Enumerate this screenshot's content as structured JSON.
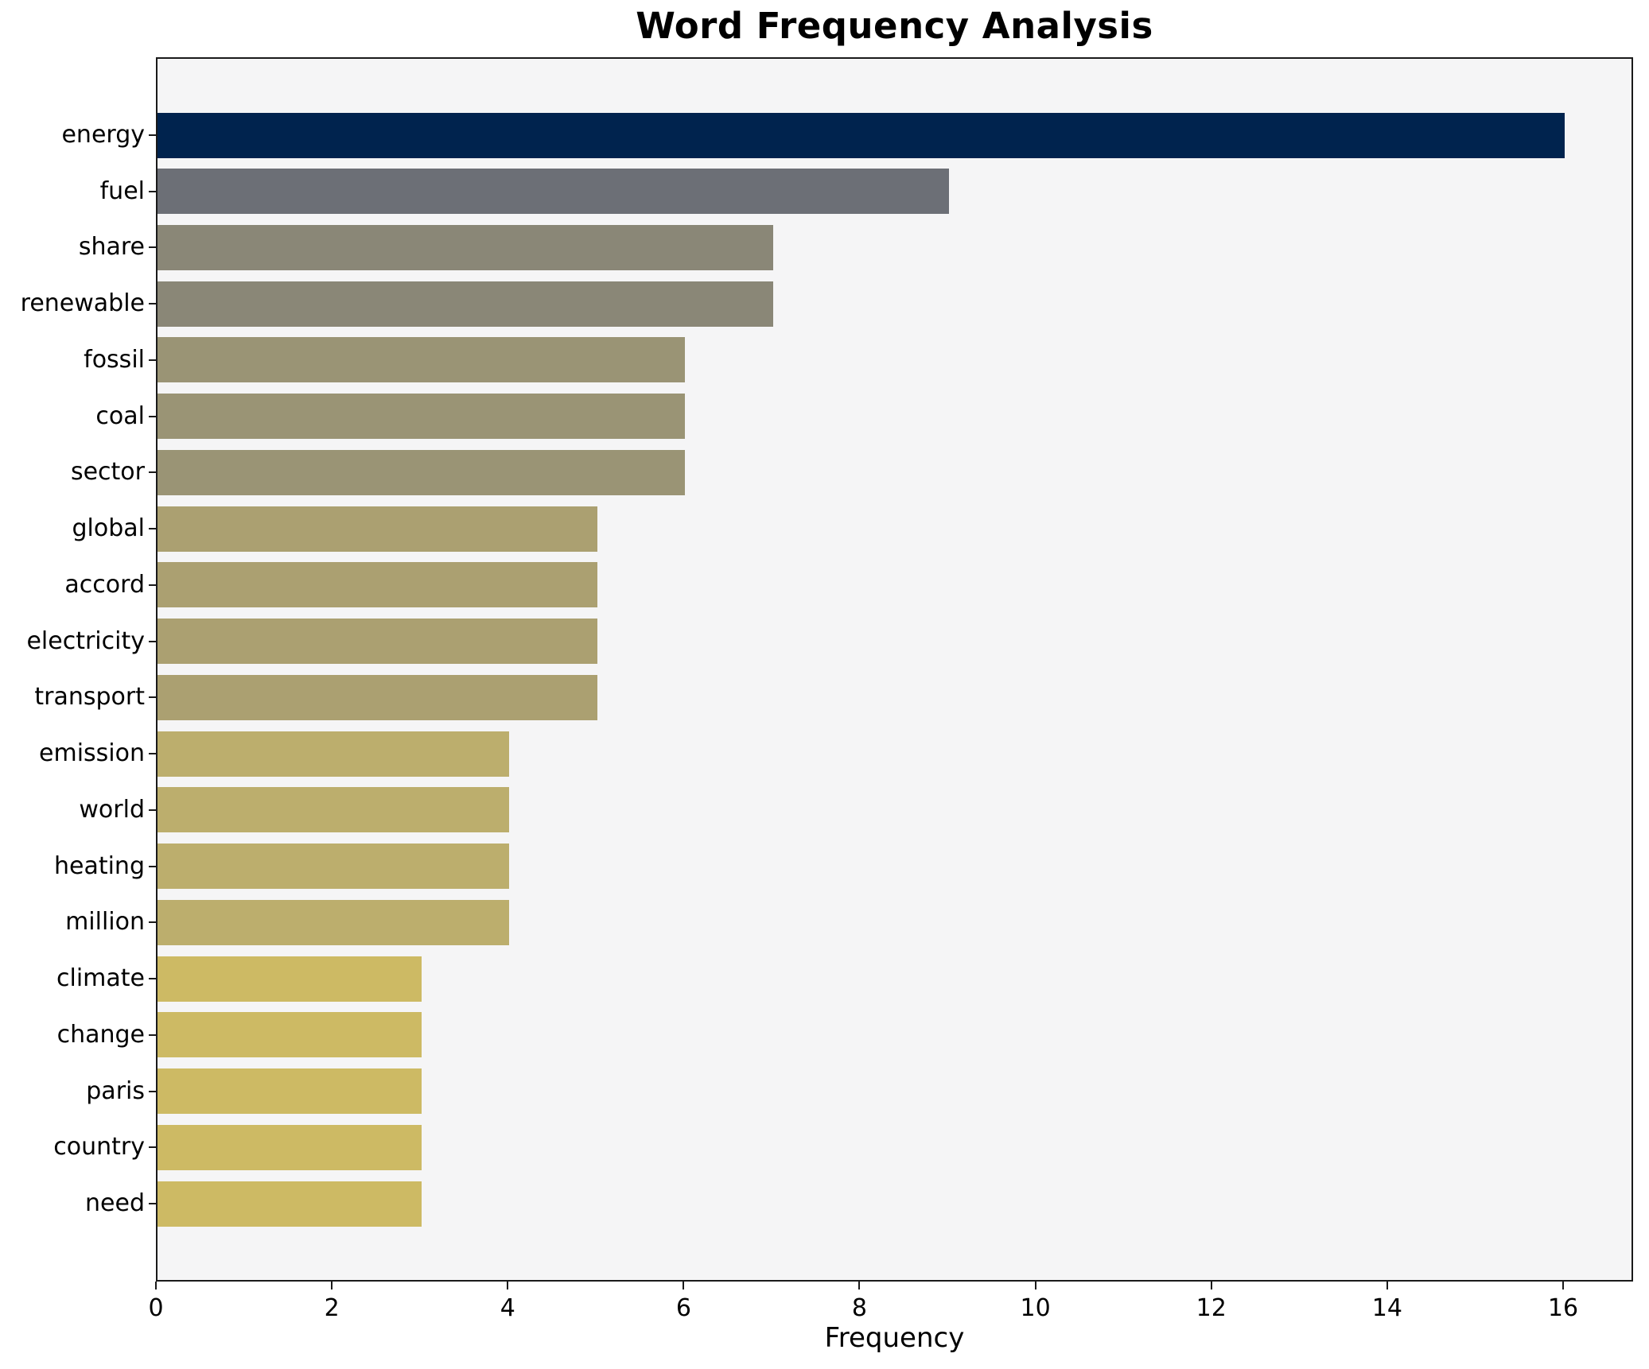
{
  "chart_data": {
    "type": "bar",
    "orientation": "horizontal",
    "title": "Word Frequency Analysis",
    "xlabel": "Frequency",
    "ylabel": "",
    "categories": [
      "energy",
      "fuel",
      "share",
      "renewable",
      "fossil",
      "coal",
      "sector",
      "global",
      "accord",
      "electricity",
      "transport",
      "emission",
      "world",
      "heating",
      "million",
      "climate",
      "change",
      "paris",
      "country",
      "need"
    ],
    "values": [
      16,
      9,
      7,
      7,
      6,
      6,
      6,
      5,
      5,
      5,
      5,
      4,
      4,
      4,
      4,
      3,
      3,
      3,
      3,
      3
    ],
    "bar_colors": [
      "#00234e",
      "#6c6f76",
      "#8a8777",
      "#8a8777",
      "#9a9475",
      "#9a9475",
      "#9a9475",
      "#aba071",
      "#aba071",
      "#aba071",
      "#aba071",
      "#bcae6d",
      "#bcae6d",
      "#bcae6d",
      "#bcae6d",
      "#cdba64",
      "#cdba64",
      "#cdba64",
      "#cdba64",
      "#cdba64"
    ],
    "xlim": [
      0,
      16.8
    ],
    "x_ticks": [
      0,
      2,
      4,
      6,
      8,
      10,
      12,
      14,
      16
    ],
    "grid": false,
    "legend": null,
    "plot_background": "#f5f5f6",
    "figure_background": "#ffffff",
    "spine_color": "#1a1a1a",
    "text_color": "#000000"
  }
}
